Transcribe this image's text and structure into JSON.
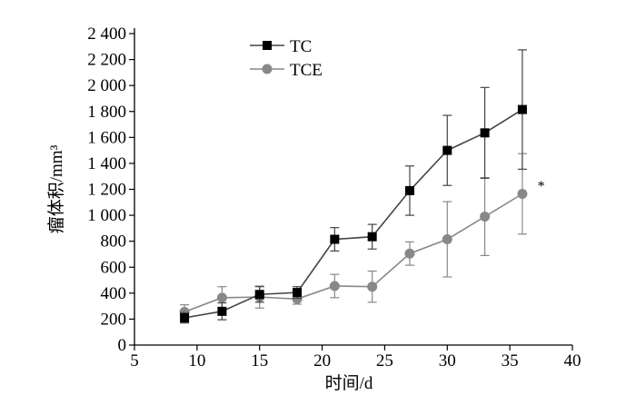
{
  "chart_data": {
    "type": "line",
    "title": "",
    "xlabel": "时间/d",
    "ylabel": "瘤体积/mm³",
    "xlim": [
      5,
      40
    ],
    "ylim": [
      0,
      2400
    ],
    "x_ticks": [
      5,
      10,
      15,
      20,
      25,
      30,
      35,
      40
    ],
    "x_tick_labels": [
      "5",
      "10",
      "15",
      "20",
      "25",
      "30",
      "35",
      "40"
    ],
    "y_ticks": [
      0,
      200,
      400,
      600,
      800,
      1000,
      1200,
      1400,
      1600,
      1800,
      2000,
      2200,
      2400
    ],
    "y_tick_labels": [
      "0",
      "200",
      "400",
      "600",
      "800",
      "1 000",
      "1 200",
      "1 400",
      "1 600",
      "1 800",
      "2 000",
      "2 200",
      "2 400"
    ],
    "grid": false,
    "legend_position": "top-left",
    "series": [
      {
        "name": "TC",
        "color": "#444444",
        "marker": "square",
        "x": [
          9,
          12,
          15,
          18,
          21,
          24,
          27,
          30,
          33,
          36
        ],
        "y": [
          210,
          260,
          390,
          405,
          815,
          835,
          1190,
          1500,
          1635,
          1815
        ],
        "error": [
          40,
          65,
          60,
          45,
          90,
          95,
          190,
          270,
          350,
          460
        ]
      },
      {
        "name": "TCE",
        "color": "#888888",
        "marker": "circle",
        "x": [
          9,
          12,
          15,
          18,
          21,
          24,
          27,
          30,
          33,
          36
        ],
        "y": [
          255,
          365,
          370,
          355,
          455,
          450,
          705,
          815,
          990,
          1165
        ],
        "error": [
          55,
          85,
          85,
          40,
          90,
          120,
          90,
          290,
          300,
          310
        ]
      }
    ],
    "annotations": [
      {
        "text": "*",
        "x": 37.5,
        "y": 1190
      }
    ]
  }
}
